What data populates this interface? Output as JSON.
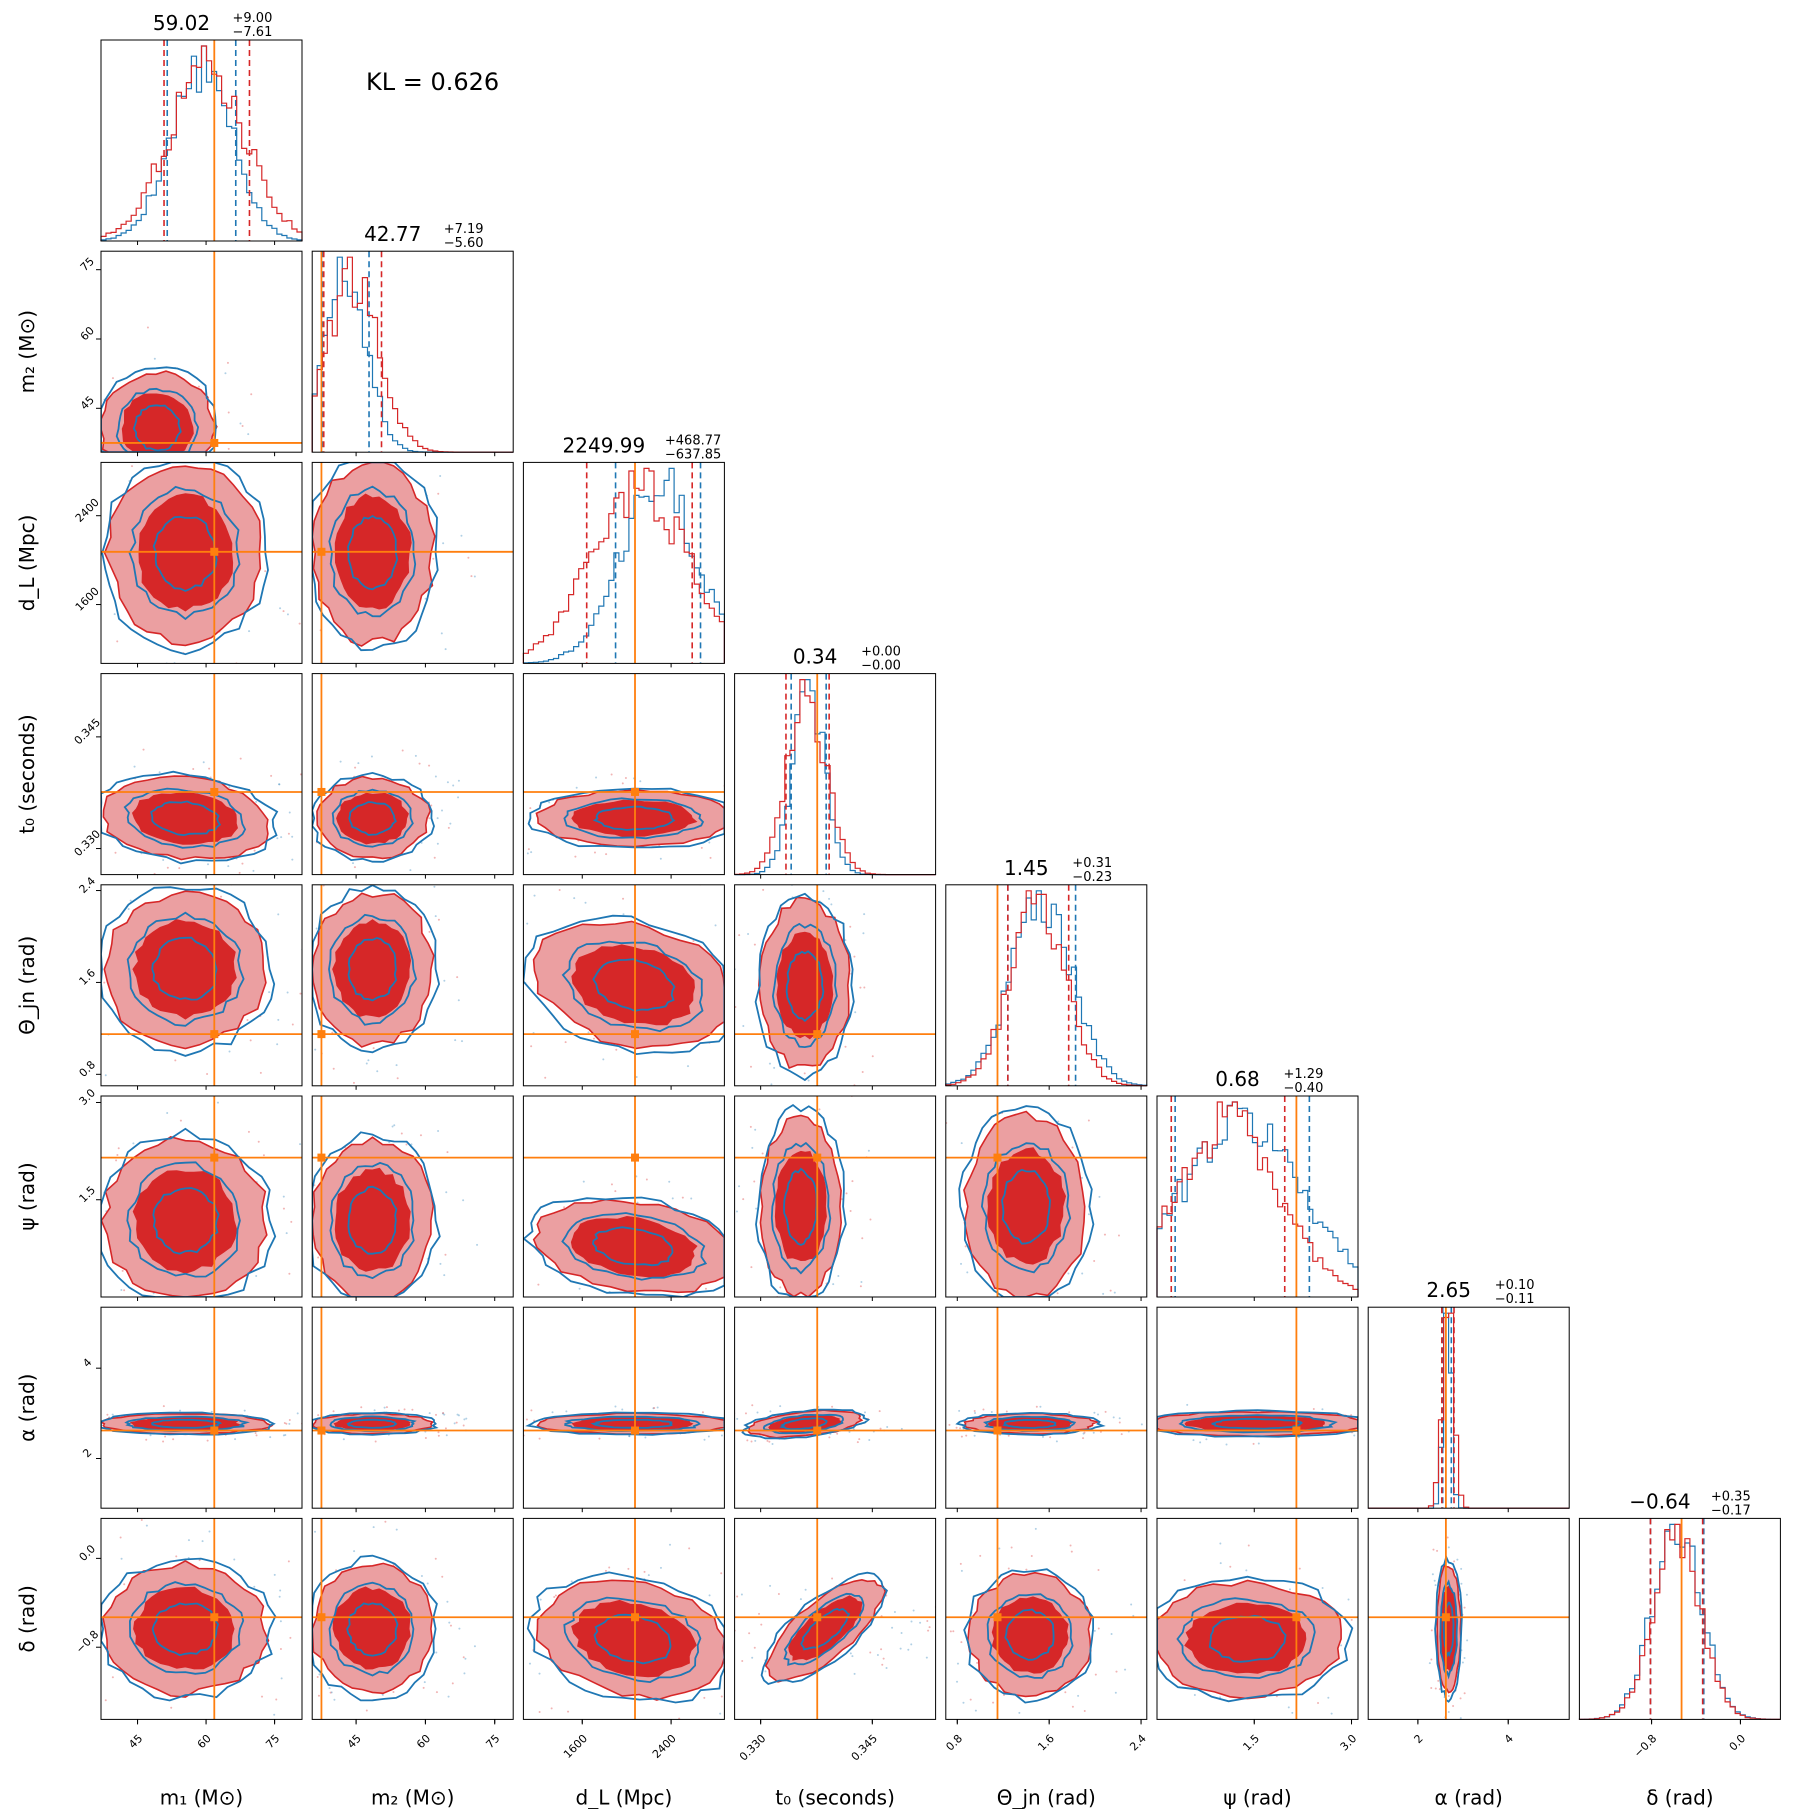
{
  "chart_data": {
    "type": "corner",
    "kl_label": "KL = 0.626",
    "parameters": [
      {
        "label": "m₁ (M⊙)",
        "range": [
          37,
          81
        ],
        "ticks": [
          45,
          60,
          75
        ],
        "tick_labels": [
          "45",
          "60",
          "75"
        ],
        "truth": 61.8,
        "title": {
          "median": "59.02",
          "plus": "+9.00",
          "minus": "−7.61"
        },
        "quantiles_blue": [
          51.5,
          66.5
        ],
        "quantiles_red": [
          50.8,
          69.5
        ]
      },
      {
        "label": "m₂ (M⊙)",
        "range": [
          35.5,
          79
        ],
        "ticks": [
          45,
          60,
          75
        ],
        "tick_labels": [
          "45",
          "60",
          "75"
        ],
        "truth": 37.5,
        "title": {
          "median": "42.77",
          "plus": "+7.19",
          "minus": "−5.60"
        },
        "quantiles_blue": [
          37.7,
          47.8
        ],
        "quantiles_red": [
          38,
          50.5
        ]
      },
      {
        "label": "d_L (Mpc)",
        "range": [
          1070,
          2880
        ],
        "ticks": [
          1600,
          2400
        ],
        "tick_labels": [
          "1600",
          "2400"
        ],
        "truth": 2075,
        "title": {
          "median": "2249.99",
          "plus": "+468.77",
          "minus": "−637.85"
        },
        "quantiles_blue": [
          1900,
          2665
        ],
        "quantiles_red": [
          1640,
          2590
        ]
      },
      {
        "label": "t₀ (seconds)",
        "range": [
          0.3265,
          0.3535
        ],
        "ticks": [
          0.33,
          0.345
        ],
        "tick_labels": [
          "0.330",
          "0.345"
        ],
        "truth": 0.3376,
        "title": {
          "median": "0.34",
          "plus": "+0.00",
          "minus": "−0.00"
        },
        "quantiles_blue": [
          0.3341,
          0.3388
        ],
        "quantiles_red": [
          0.3334,
          0.3392
        ]
      },
      {
        "label": "Θ_jn (rad)",
        "range": [
          0.7,
          2.45
        ],
        "ticks": [
          0.8,
          1.6,
          2.4
        ],
        "tick_labels": [
          "0.8",
          "1.6",
          "2.4"
        ],
        "truth": 1.15,
        "title": {
          "median": "1.45",
          "plus": "+0.31",
          "minus": "−0.23"
        },
        "quantiles_blue": [
          1.24,
          1.83
        ],
        "quantiles_red": [
          1.24,
          1.77
        ]
      },
      {
        "label": "ψ (rad)",
        "range": [
          0,
          3.1
        ],
        "ticks": [
          1.5,
          3.0
        ],
        "tick_labels": [
          "1.5",
          "3.0"
        ],
        "truth": 2.15,
        "title": {
          "median": "0.68",
          "plus": "+1.29",
          "minus": "−0.40"
        },
        "quantiles_blue": [
          0.28,
          2.35
        ],
        "quantiles_red": [
          0.22,
          1.97
        ]
      },
      {
        "label": "α (rad)",
        "range": [
          0.9,
          5.35
        ],
        "ticks": [
          2,
          4
        ],
        "tick_labels": [
          "2",
          "4"
        ],
        "truth": 2.62,
        "title": {
          "median": "2.65",
          "plus": "+0.10",
          "minus": "−0.11"
        },
        "quantiles_blue": [
          2.55,
          2.74
        ],
        "quantiles_red": [
          2.53,
          2.8
        ]
      },
      {
        "label": "δ (rad)",
        "range": [
          -1.45,
          0.36
        ],
        "ticks": [
          -0.8,
          0.0
        ],
        "tick_labels": [
          "−0.8",
          "0.0"
        ],
        "truth": -0.53,
        "title": {
          "median": "−0.64",
          "plus": "+0.35",
          "minus": "−0.17"
        },
        "quantiles_blue": [
          -0.81,
          -0.33
        ],
        "quantiles_red": [
          -0.81,
          -0.34
        ]
      }
    ],
    "colors": {
      "blue": "#1f77b4",
      "red": "#d62728",
      "red_light": "#eb9fa1",
      "truth": "#ff7f0e"
    }
  }
}
